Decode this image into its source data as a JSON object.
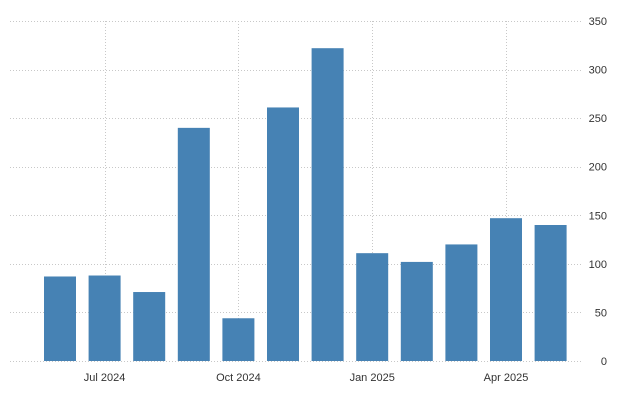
{
  "chart_data": {
    "type": "bar",
    "categories": [
      "2024-06",
      "2024-07",
      "2024-08",
      "2024-09",
      "2024-10",
      "2024-11",
      "2024-12",
      "2025-01",
      "2025-02",
      "2025-03",
      "2025-04",
      "2025-05"
    ],
    "values": [
      87,
      88,
      71,
      240,
      44,
      261,
      322,
      111,
      102,
      120,
      147,
      140
    ],
    "title": "",
    "xlabel": "",
    "ylabel": "",
    "ylim": [
      0,
      350
    ],
    "y_ticks": [
      "0",
      "50",
      "100",
      "150",
      "200",
      "250",
      "300",
      "350"
    ],
    "x_ticks": [
      {
        "label": "Jul 2024",
        "at": "2024-07"
      },
      {
        "label": "Oct 2024",
        "at": "2024-10"
      },
      {
        "label": "Jan 2025",
        "at": "2025-01"
      },
      {
        "label": "Apr 2025",
        "at": "2025-04"
      }
    ],
    "grid": true,
    "y_axis_side": "right",
    "bar_color": "#4682b4",
    "grid_color": "#c8c8c8"
  }
}
